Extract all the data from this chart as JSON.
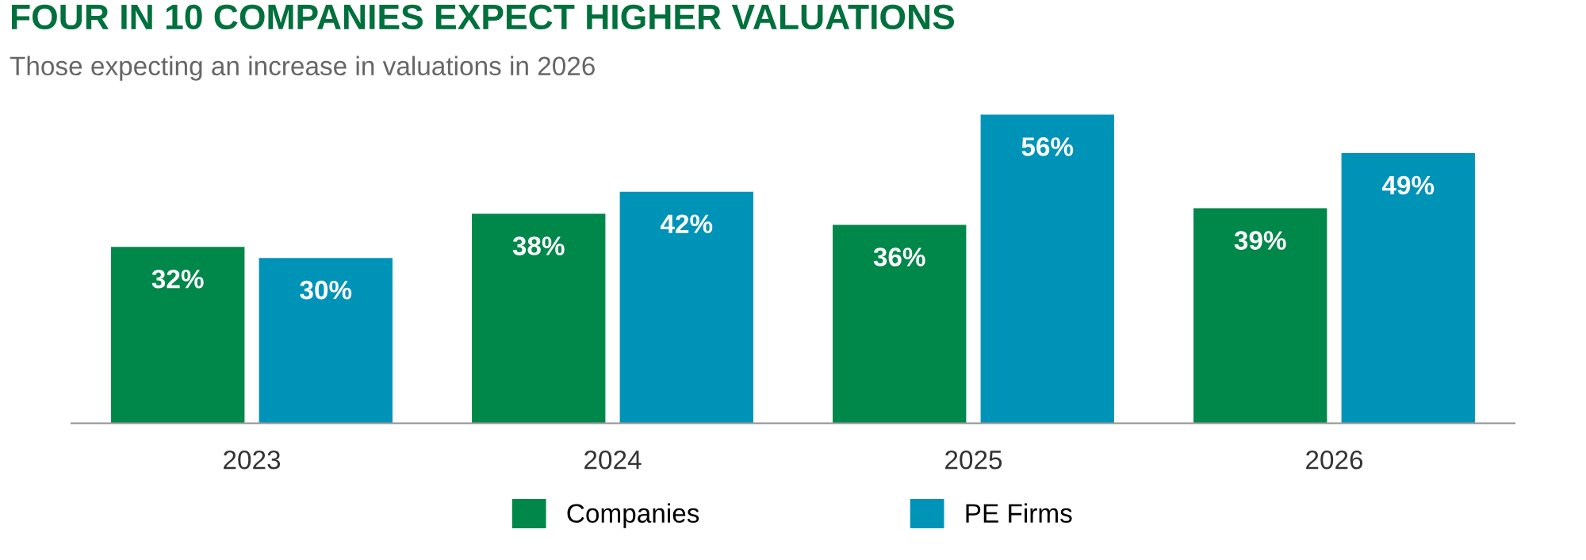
{
  "chart_data": {
    "type": "bar",
    "title": "FOUR IN 10 COMPANIES EXPECT HIGHER VALUATIONS",
    "subtitle": "Those expecting an increase in valuations in 2026",
    "categories": [
      "2023",
      "2024",
      "2025",
      "2026"
    ],
    "series": [
      {
        "name": "Companies",
        "color": "#00874a",
        "values": [
          32,
          38,
          36,
          39
        ],
        "value_labels": [
          "32%",
          "38%",
          "36%",
          "39%"
        ]
      },
      {
        "name": "PE Firms",
        "color": "#0093b8",
        "values": [
          30,
          42,
          56,
          49
        ],
        "value_labels": [
          "30%",
          "42%",
          "56%",
          "49%"
        ]
      }
    ],
    "legend": "bottom",
    "grid": false
  }
}
